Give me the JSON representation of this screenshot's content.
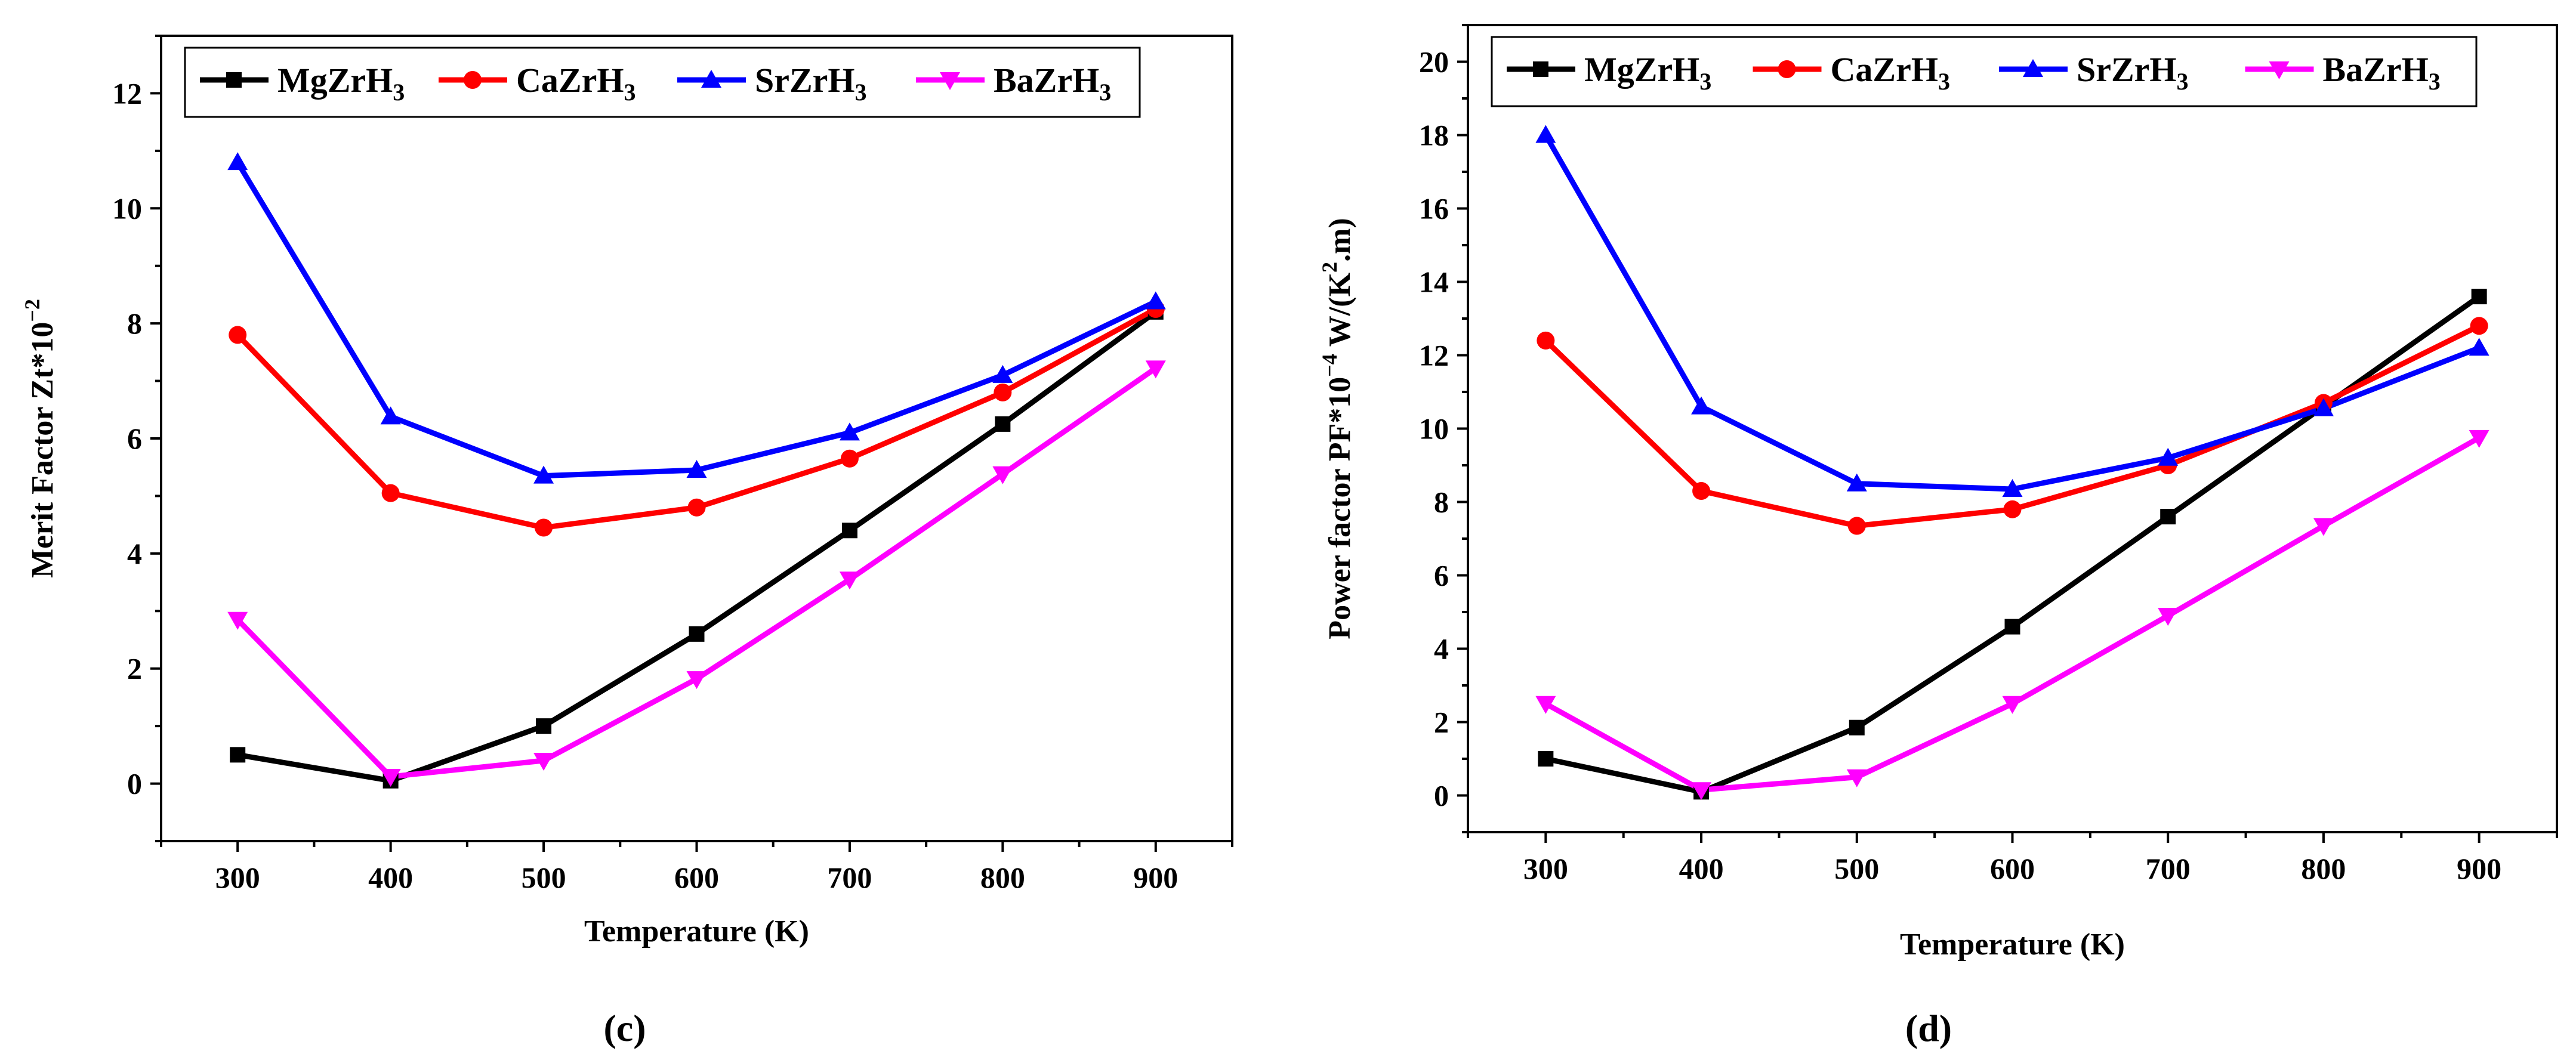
{
  "chart_data": [
    {
      "type": "line",
      "caption": "(c)",
      "xlabel": "Temperature (K)",
      "ylabel": "Merit Factor Zt*10",
      "ylabel_sup": "−2",
      "x": [
        300,
        400,
        500,
        600,
        700,
        800,
        900
      ],
      "xticks": [
        300,
        400,
        500,
        600,
        700,
        800,
        900
      ],
      "yticks": [
        0,
        2,
        4,
        6,
        8,
        10,
        12
      ],
      "xlim": [
        250,
        950
      ],
      "ylim": [
        -1,
        13
      ],
      "grid": false,
      "legend_position": "top",
      "series": [
        {
          "name": "MgZrH",
          "sub": "3",
          "color": "#000000",
          "marker": "square",
          "values": [
            0.5,
            0.05,
            1.0,
            2.6,
            4.4,
            6.25,
            8.2
          ]
        },
        {
          "name": "CaZrH",
          "sub": "3",
          "color": "#ff0000",
          "marker": "circle",
          "values": [
            7.8,
            5.05,
            4.45,
            4.8,
            5.65,
            6.8,
            8.25
          ]
        },
        {
          "name": "SrZrH",
          "sub": "3",
          "color": "#0000ff",
          "marker": "triangle-up",
          "values": [
            10.8,
            6.38,
            5.35,
            5.45,
            6.1,
            7.1,
            8.38
          ]
        },
        {
          "name": "BaZrH",
          "sub": "3",
          "color": "#ff00ff",
          "marker": "triangle-down",
          "values": [
            2.85,
            0.12,
            0.4,
            1.82,
            3.55,
            5.38,
            7.22
          ]
        }
      ]
    },
    {
      "type": "line",
      "caption": "(d)",
      "xlabel": "Temperature (K)",
      "ylabel": "Power factor PF*10",
      "ylabel_sup": "−4",
      "ylabel_unit": " W/(K",
      "ylabel_unit_sup": "2",
      "ylabel_unit_tail": ".m)",
      "x": [
        300,
        400,
        500,
        600,
        700,
        800,
        900
      ],
      "xticks": [
        300,
        400,
        500,
        600,
        700,
        800,
        900
      ],
      "yticks": [
        0,
        2,
        4,
        6,
        8,
        10,
        12,
        14,
        16,
        18,
        20
      ],
      "xlim": [
        250,
        950
      ],
      "ylim": [
        -1,
        21
      ],
      "grid": false,
      "legend_position": "top",
      "series": [
        {
          "name": "MgZrH",
          "sub": "3",
          "color": "#000000",
          "marker": "square",
          "values": [
            1.0,
            0.1,
            1.85,
            4.6,
            7.6,
            10.6,
            13.6
          ]
        },
        {
          "name": "CaZrH",
          "sub": "3",
          "color": "#ff0000",
          "marker": "circle",
          "values": [
            12.4,
            8.3,
            7.35,
            7.8,
            9.0,
            10.7,
            12.8
          ]
        },
        {
          "name": "SrZrH",
          "sub": "3",
          "color": "#0000ff",
          "marker": "triangle-up",
          "values": [
            18.0,
            10.6,
            8.5,
            8.35,
            9.2,
            10.55,
            12.2
          ]
        },
        {
          "name": "BaZrH",
          "sub": "3",
          "color": "#ff00ff",
          "marker": "triangle-down",
          "values": [
            2.5,
            0.15,
            0.5,
            2.5,
            4.9,
            7.35,
            9.75
          ]
        }
      ]
    }
  ]
}
